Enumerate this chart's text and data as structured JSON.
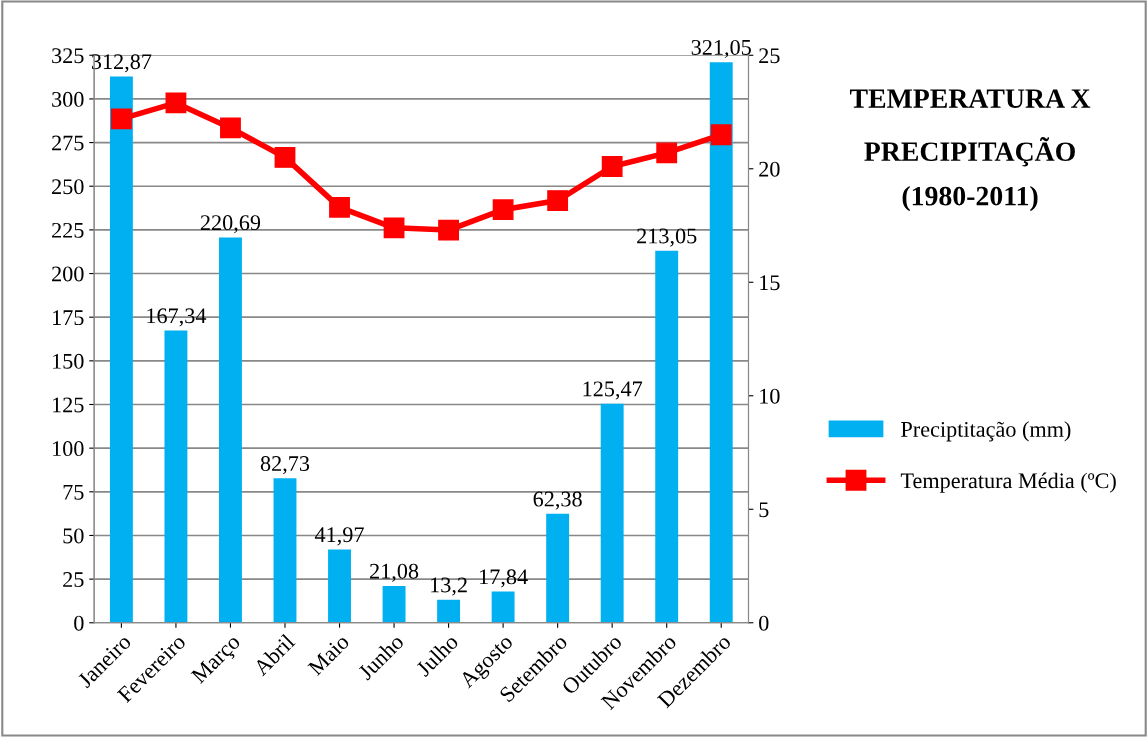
{
  "chart_data": {
    "type": "bar",
    "title": "TEMPERATURA X\nPRECIPITAÇÃO\n(1980-2011)",
    "categories": [
      "Janeiro",
      "Fevereiro",
      "Março",
      "Abril",
      "Maio",
      "Junho",
      "Julho",
      "Agosto",
      "Setembro",
      "Outubro",
      "Novembro",
      "Dezembro"
    ],
    "series": [
      {
        "name": "Preciptitação (mm)",
        "color": "#00b0f0",
        "values": [
          312.87,
          167.34,
          220.69,
          82.73,
          41.97,
          21.08,
          13.2,
          17.84,
          62.38,
          125.47,
          213.05,
          321.05
        ],
        "value_labels": [
          "312,87",
          "167,34",
          "220,69",
          "82,73",
          "41,97",
          "21,08",
          "13,2",
          "17,84",
          "62,38",
          "125,47",
          "213,05",
          "321,05"
        ]
      },
      {
        "name": "Temperatura Média (ºC)",
        "type": "line",
        "axis": "y2",
        "color": "#ff0000",
        "marker": "square",
        "values": [
          22.2,
          22.9,
          21.8,
          20.5,
          18.3,
          17.4,
          17.3,
          18.2,
          18.6,
          20.1,
          20.7,
          21.5
        ]
      }
    ],
    "ylim": [
      0,
      325
    ],
    "yticks": [
      0,
      25,
      50,
      75,
      100,
      125,
      150,
      175,
      200,
      225,
      250,
      275,
      300,
      325
    ],
    "y2lim": [
      0,
      25
    ],
    "y2ticks": [
      0,
      5,
      10,
      15,
      20,
      25
    ],
    "grid": "y",
    "legend": "right"
  }
}
